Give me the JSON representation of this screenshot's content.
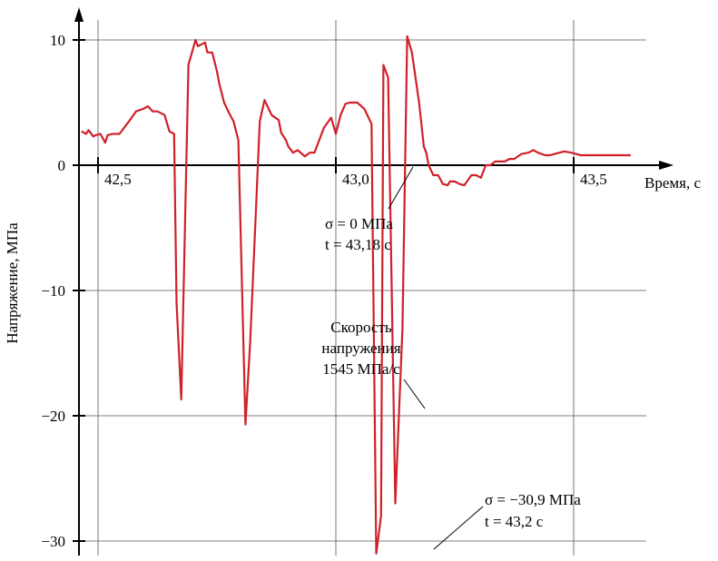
{
  "chart_data": {
    "type": "line",
    "xlabel": "Время, с",
    "ylabel": "Напряжение, МПа",
    "x_ticks": [
      {
        "value": 42.5,
        "label": "42,5"
      },
      {
        "value": 43.0,
        "label": "43,0"
      },
      {
        "value": 43.5,
        "label": "43,5"
      }
    ],
    "y_ticks": [
      {
        "value": 10,
        "label": "10"
      },
      {
        "value": 0,
        "label": "0"
      },
      {
        "value": -10,
        "label": "−10"
      },
      {
        "value": -20,
        "label": "−20"
      },
      {
        "value": -30,
        "label": "−30"
      }
    ],
    "xlim": [
      42.5,
      43.65
    ],
    "ylim": [
      -31,
      10
    ],
    "grid": true,
    "series_color": "#d0202a",
    "series": [
      {
        "x": [
          42.465,
          42.475,
          42.48,
          42.49,
          42.495,
          42.505,
          42.515,
          42.52,
          42.53,
          42.545,
          42.565,
          42.58,
          42.595,
          42.605,
          42.615,
          42.625,
          42.64,
          42.65,
          42.66,
          42.665,
          42.675,
          42.69,
          42.705,
          42.71,
          42.725,
          42.73,
          42.74,
          42.75,
          42.755,
          42.765,
          42.775,
          42.785,
          42.795,
          42.81,
          42.82,
          42.84,
          42.85,
          42.865,
          42.88,
          42.885,
          42.895,
          42.9,
          42.91,
          42.92,
          42.935,
          42.945,
          42.955,
          42.965,
          42.975,
          42.99,
          43.0,
          43.01,
          43.02,
          43.03,
          43.045,
          43.06,
          43.075,
          43.085,
          43.095,
          43.1,
          43.11,
          43.125,
          43.14,
          43.15,
          43.16,
          43.175,
          43.185,
          43.19,
          43.195,
          43.205,
          43.215,
          43.225,
          43.235,
          43.24,
          43.25,
          43.26,
          43.27,
          43.285,
          43.295,
          43.305,
          43.315,
          43.325,
          43.335,
          43.345,
          43.355,
          43.365,
          43.375,
          43.39,
          43.405,
          43.415,
          43.425,
          43.44,
          43.45,
          43.46,
          43.47,
          43.48,
          43.495,
          43.505,
          43.515,
          43.525,
          43.535,
          43.545,
          43.56,
          43.575,
          43.59,
          43.605,
          43.62
        ],
        "y": [
          2.7,
          2.5,
          2.8,
          2.3,
          2.4,
          2.5,
          1.8,
          2.4,
          2.5,
          2.5,
          3.5,
          4.3,
          4.5,
          4.7,
          4.3,
          4.3,
          4.0,
          2.7,
          2.5,
          -11,
          -18.7,
          8.0,
          10.0,
          9.5,
          9.8,
          9.0,
          9.0,
          7.5,
          6.5,
          5.0,
          4.2,
          3.5,
          2.0,
          -20.7,
          -14,
          3.5,
          5.2,
          4.0,
          3.6,
          2.6,
          2.0,
          1.5,
          1.0,
          1.2,
          0.7,
          1.0,
          1.0,
          2.0,
          3.0,
          3.8,
          2.5,
          4.0,
          4.9,
          5.0,
          5.0,
          4.5,
          3.3,
          -31,
          -28,
          8.0,
          7.0,
          -27,
          -13,
          10.3,
          9.0,
          5.0,
          1.5,
          1.0,
          0.0,
          -0.8,
          -0.8,
          -1.5,
          -1.6,
          -1.3,
          -1.3,
          -1.5,
          -1.6,
          -0.8,
          -0.8,
          -1.0,
          0.0,
          0.0,
          0.3,
          0.3,
          0.3,
          0.5,
          0.5,
          0.9,
          1.0,
          1.2,
          1.0,
          0.8,
          0.8,
          0.9,
          1.0,
          1.1,
          1.0,
          0.9,
          0.8,
          0.8,
          0.8,
          0.8,
          0.8,
          0.8,
          0.8,
          0.8,
          0.8
        ]
      }
    ],
    "annotations": [
      {
        "lines": [
          "σ = 0 МПа",
          "t = 43,18 с"
        ]
      },
      {
        "lines": [
          "Скорость",
          "напружения",
          "1545 МПа/с"
        ]
      },
      {
        "lines": [
          "σ = −30,9 МПа",
          "t = 43,2 с"
        ]
      }
    ]
  }
}
